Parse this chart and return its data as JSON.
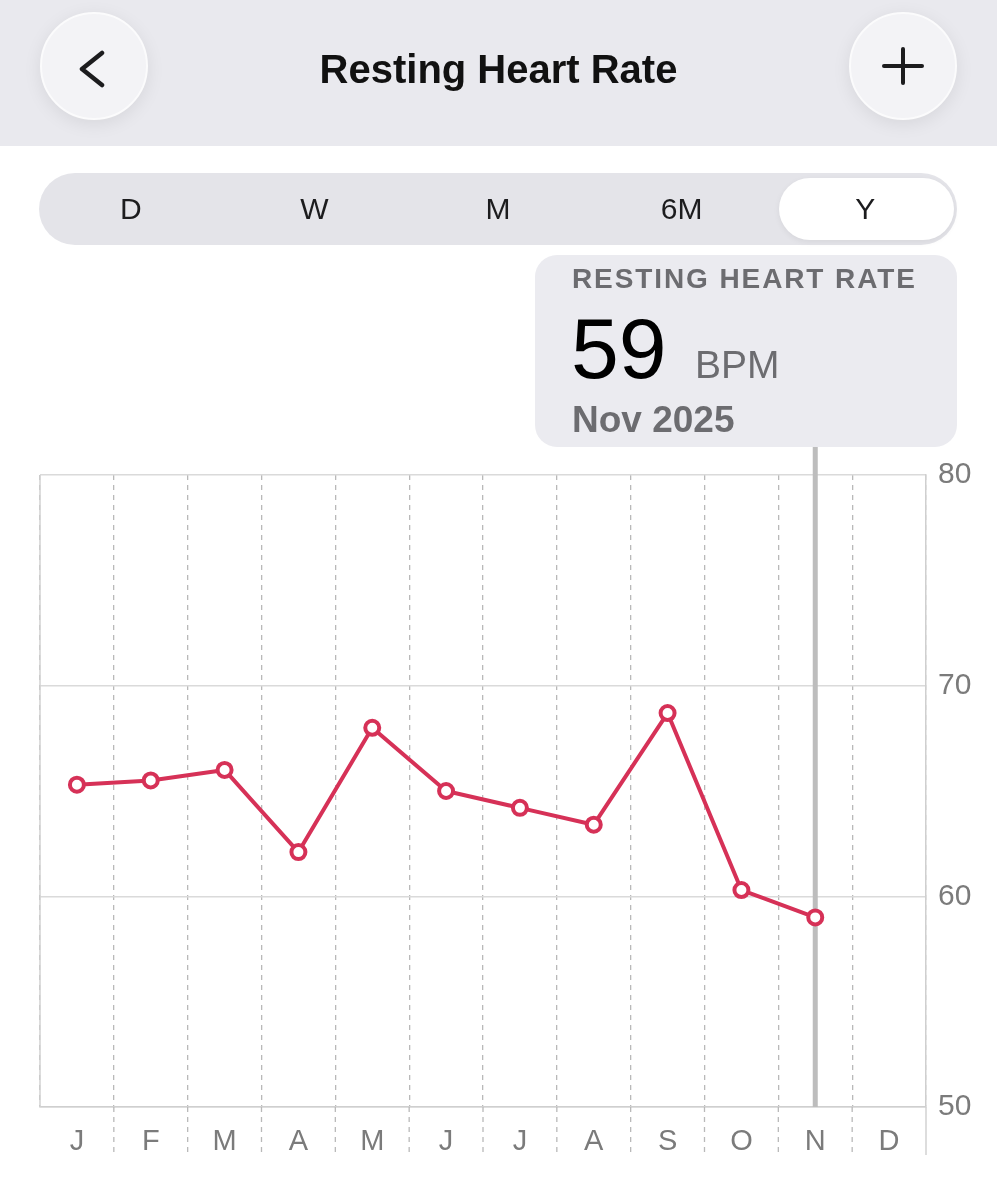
{
  "chart_data": {
    "type": "line",
    "title": "Resting Heart Rate",
    "annotations": [
      "D",
      "W",
      "M",
      "6M",
      "Y",
      "RESTING HEART RATE",
      "59",
      "BPM",
      "Nov 2025"
    ],
    "categories": [
      "J",
      "F",
      "M",
      "A",
      "M",
      "J",
      "J",
      "A",
      "S",
      "O",
      "N",
      "D"
    ],
    "values": [
      65.3,
      65.5,
      66.0,
      62.1,
      68.0,
      65.0,
      64.2,
      63.4,
      68.7,
      60.3,
      59,
      null
    ],
    "color": "#d63157",
    "marker": "circle",
    "line_style": "solid",
    "ylim": [
      50,
      80
    ],
    "yticks": [
      50,
      60,
      70,
      80
    ],
    "grid": true,
    "ref_lines": [
      {
        "axis": "x",
        "value": "N",
        "color": "#bdbdbd"
      }
    ]
  }
}
